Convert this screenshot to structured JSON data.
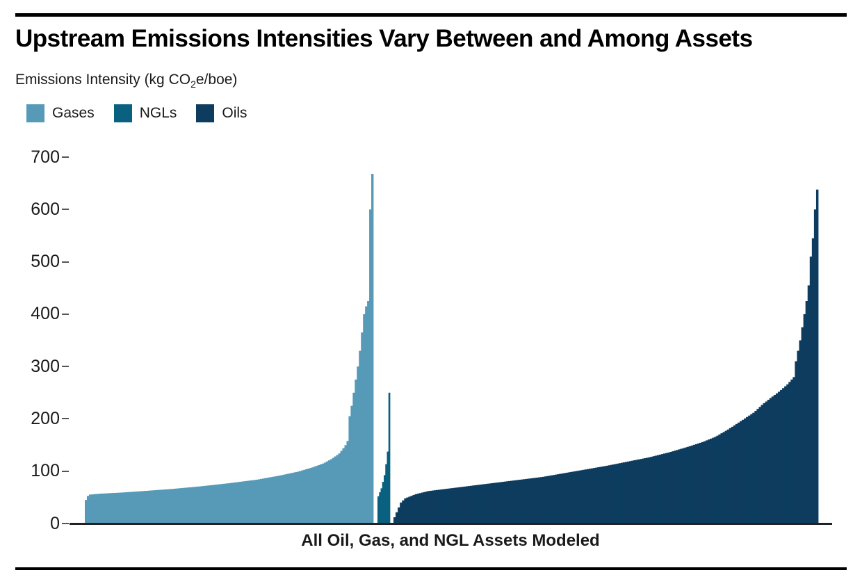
{
  "chart_data": {
    "type": "bar",
    "title": "Upstream Emissions Intensities Vary Between and Among Assets",
    "ylabel": "Emissions Intensity (kg CO2e/boe)",
    "ylabel_parts": {
      "pre": "Emissions Intensity (kg CO",
      "sub": "2",
      "post": "e/boe)"
    },
    "xlabel": "All Oil, Gas, and NGL Assets Modeled",
    "ylim": [
      0,
      700
    ],
    "yticks": [
      0,
      100,
      200,
      300,
      400,
      500,
      600,
      700
    ],
    "grid": false,
    "legend_position": "top-left",
    "legend": [
      {
        "label": "Gases",
        "color": "#569ab8"
      },
      {
        "label": "NGLs",
        "color": "#09617f"
      },
      {
        "label": "Oils",
        "color": "#0d3c5f"
      }
    ],
    "series": [
      {
        "name": "Gases",
        "color": "#569ab8",
        "bar_count": 140,
        "min": 45,
        "max": 668,
        "curve_points": [
          [
            0,
            45
          ],
          [
            0.004,
            50
          ],
          [
            0.01,
            55
          ],
          [
            0.05,
            57
          ],
          [
            0.12,
            59
          ],
          [
            0.2,
            62
          ],
          [
            0.3,
            66
          ],
          [
            0.4,
            71
          ],
          [
            0.5,
            77
          ],
          [
            0.6,
            84
          ],
          [
            0.68,
            92
          ],
          [
            0.74,
            99
          ],
          [
            0.79,
            107
          ],
          [
            0.83,
            115
          ],
          [
            0.86,
            124
          ],
          [
            0.885,
            134
          ],
          [
            0.905,
            148
          ],
          [
            0.914,
            158
          ],
          [
            1,
            200
          ]
        ],
        "tail_values": [
          205,
          225,
          250,
          275,
          300,
          330,
          365,
          400,
          415,
          425,
          600,
          668
        ]
      },
      {
        "name": "NGLs",
        "color": "#09617f",
        "bar_count": 8,
        "min": 52,
        "max": 250,
        "curve_points": [
          [
            0,
            52
          ],
          [
            0.3,
            68
          ],
          [
            0.6,
            95
          ],
          [
            0.85,
            135
          ],
          [
            1,
            185
          ]
        ],
        "tail_values": [
          250
        ]
      },
      {
        "name": "Oils",
        "color": "#0d3c5f",
        "bar_count": 200,
        "min": 12,
        "max": 638,
        "curve_points": [
          [
            0,
            12
          ],
          [
            0.008,
            27
          ],
          [
            0.015,
            40
          ],
          [
            0.025,
            48
          ],
          [
            0.05,
            56
          ],
          [
            0.08,
            62
          ],
          [
            0.12,
            66
          ],
          [
            0.18,
            72
          ],
          [
            0.25,
            79
          ],
          [
            0.3,
            84
          ],
          [
            0.35,
            89
          ],
          [
            0.4,
            96
          ],
          [
            0.45,
            103
          ],
          [
            0.5,
            110
          ],
          [
            0.55,
            118
          ],
          [
            0.6,
            126
          ],
          [
            0.65,
            136
          ],
          [
            0.7,
            148
          ],
          [
            0.73,
            156
          ],
          [
            0.76,
            166
          ],
          [
            0.79,
            180
          ],
          [
            0.82,
            196
          ],
          [
            0.85,
            212
          ],
          [
            0.87,
            227
          ],
          [
            0.89,
            240
          ],
          [
            0.91,
            252
          ],
          [
            0.93,
            266
          ],
          [
            0.945,
            280
          ],
          [
            0.955,
            295
          ],
          [
            0.965,
            315
          ],
          [
            0.975,
            345
          ],
          [
            0.982,
            382
          ],
          [
            0.987,
            418
          ],
          [
            1,
            430
          ]
        ],
        "tail_values": [
          310,
          330,
          350,
          375,
          400,
          425,
          455,
          510,
          545,
          600,
          638
        ]
      }
    ]
  }
}
